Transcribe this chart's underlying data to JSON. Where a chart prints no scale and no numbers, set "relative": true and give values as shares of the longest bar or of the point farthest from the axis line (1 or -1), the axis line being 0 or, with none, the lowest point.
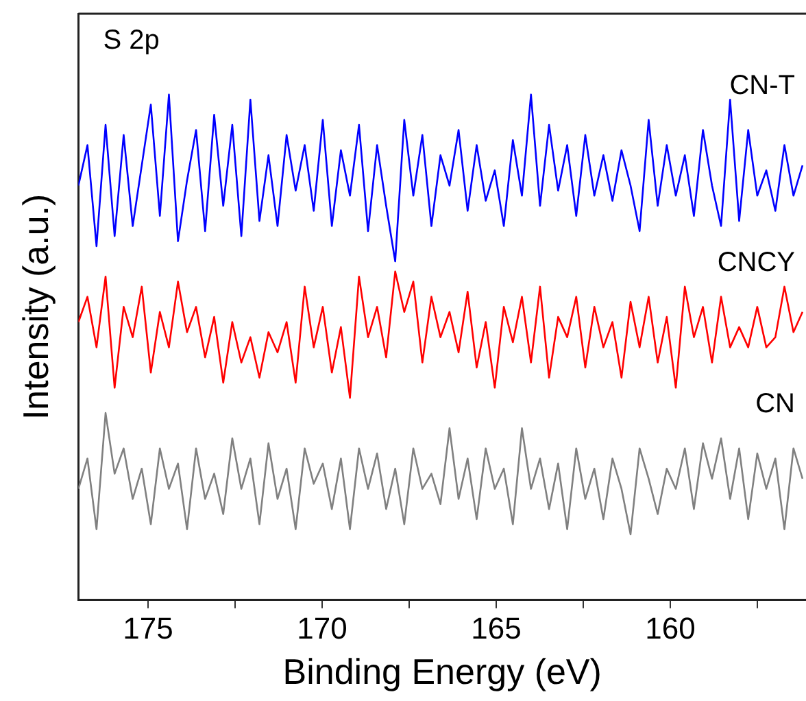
{
  "chart_data": {
    "type": "line",
    "title": "S 2p",
    "xlabel": "Binding Energy (eV)",
    "ylabel": "Intensity (a.u.)",
    "relative": true,
    "xlim": [
      177,
      156.1
    ],
    "xticks": [
      {
        "value": 175,
        "label": "175"
      },
      {
        "value": 172.5,
        "label": null
      },
      {
        "value": 170,
        "label": "170"
      },
      {
        "value": 167.5,
        "label": null
      },
      {
        "value": 165,
        "label": "165"
      },
      {
        "value": 162.5,
        "label": null
      },
      {
        "value": 160,
        "label": "160"
      },
      {
        "value": 157.5,
        "label": null
      }
    ],
    "x": [
      177.0,
      176.74,
      176.48,
      176.22,
      175.96,
      175.7,
      175.44,
      175.18,
      174.92,
      174.66,
      174.4,
      174.14,
      173.88,
      173.62,
      173.36,
      173.1,
      172.84,
      172.58,
      172.32,
      172.06,
      171.8,
      171.54,
      171.28,
      171.02,
      170.76,
      170.5,
      170.24,
      169.98,
      169.72,
      169.46,
      169.2,
      168.94,
      168.68,
      168.42,
      168.16,
      167.9,
      167.64,
      167.38,
      167.12,
      166.86,
      166.6,
      166.34,
      166.08,
      165.82,
      165.56,
      165.3,
      165.04,
      164.78,
      164.52,
      164.26,
      164.0,
      163.74,
      163.48,
      163.22,
      162.96,
      162.7,
      162.44,
      162.18,
      161.92,
      161.66,
      161.4,
      161.14,
      160.88,
      160.62,
      160.36,
      160.1,
      159.84,
      159.58,
      159.32,
      159.06,
      158.8,
      158.54,
      158.28,
      158.02,
      157.76,
      157.5,
      157.24,
      156.98,
      156.72,
      156.46,
      156.2
    ],
    "grid": false,
    "legend": false,
    "marker": "none",
    "line_style": "solid",
    "series": [
      {
        "name": "CN-T",
        "color": "#0000ff",
        "values": [
          0.82,
          0.9,
          0.7,
          0.94,
          0.72,
          0.92,
          0.74,
          0.86,
          0.98,
          0.76,
          1.0,
          0.71,
          0.83,
          0.93,
          0.73,
          0.96,
          0.78,
          0.94,
          0.72,
          0.99,
          0.75,
          0.88,
          0.74,
          0.92,
          0.81,
          0.9,
          0.77,
          0.95,
          0.74,
          0.89,
          0.8,
          0.94,
          0.73,
          0.9,
          0.78,
          0.67,
          0.95,
          0.8,
          0.92,
          0.74,
          0.88,
          0.82,
          0.93,
          0.77,
          0.9,
          0.79,
          0.85,
          0.74,
          0.91,
          0.8,
          1.0,
          0.78,
          0.94,
          0.81,
          0.9,
          0.76,
          0.92,
          0.8,
          0.88,
          0.79,
          0.89,
          0.82,
          0.73,
          0.95,
          0.78,
          0.9,
          0.8,
          0.88,
          0.76,
          0.93,
          0.82,
          0.74,
          0.99,
          0.75,
          0.93,
          0.8,
          0.85,
          0.77,
          0.9,
          0.8,
          0.86
        ]
      },
      {
        "name": "CNCY",
        "color": "#ff0000",
        "values": [
          0.55,
          0.6,
          0.5,
          0.64,
          0.42,
          0.58,
          0.52,
          0.62,
          0.45,
          0.57,
          0.5,
          0.63,
          0.53,
          0.58,
          0.48,
          0.56,
          0.43,
          0.55,
          0.47,
          0.52,
          0.44,
          0.53,
          0.49,
          0.55,
          0.43,
          0.62,
          0.5,
          0.58,
          0.45,
          0.54,
          0.4,
          0.64,
          0.52,
          0.58,
          0.48,
          0.65,
          0.57,
          0.63,
          0.47,
          0.6,
          0.52,
          0.57,
          0.49,
          0.61,
          0.46,
          0.55,
          0.42,
          0.58,
          0.51,
          0.6,
          0.47,
          0.62,
          0.44,
          0.56,
          0.52,
          0.6,
          0.46,
          0.58,
          0.5,
          0.55,
          0.44,
          0.59,
          0.5,
          0.6,
          0.47,
          0.56,
          0.42,
          0.62,
          0.52,
          0.58,
          0.47,
          0.6,
          0.5,
          0.54,
          0.5,
          0.58,
          0.5,
          0.52,
          0.62,
          0.53,
          0.57
        ]
      },
      {
        "name": "CN",
        "color": "#808080",
        "values": [
          0.22,
          0.28,
          0.14,
          0.37,
          0.25,
          0.3,
          0.2,
          0.26,
          0.15,
          0.3,
          0.22,
          0.27,
          0.14,
          0.3,
          0.2,
          0.25,
          0.17,
          0.32,
          0.22,
          0.28,
          0.15,
          0.31,
          0.2,
          0.26,
          0.14,
          0.3,
          0.23,
          0.27,
          0.18,
          0.28,
          0.14,
          0.3,
          0.22,
          0.29,
          0.18,
          0.26,
          0.15,
          0.3,
          0.22,
          0.25,
          0.19,
          0.34,
          0.2,
          0.28,
          0.16,
          0.3,
          0.22,
          0.26,
          0.15,
          0.34,
          0.22,
          0.28,
          0.18,
          0.27,
          0.14,
          0.3,
          0.2,
          0.26,
          0.16,
          0.28,
          0.22,
          0.13,
          0.3,
          0.24,
          0.17,
          0.26,
          0.22,
          0.3,
          0.18,
          0.31,
          0.24,
          0.32,
          0.2,
          0.3,
          0.16,
          0.29,
          0.22,
          0.28,
          0.14,
          0.3,
          0.24
        ]
      }
    ]
  }
}
